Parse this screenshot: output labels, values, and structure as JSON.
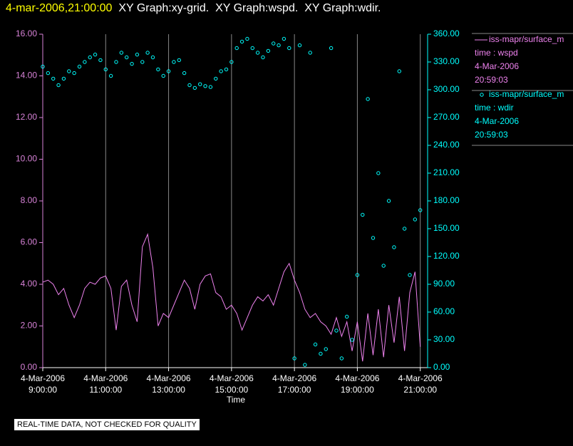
{
  "chart_data": {
    "type": "line",
    "title_time": "4-mar-2006,21:00:00",
    "title": "XY Graph:xy-grid.  XY Graph:wspd.  XY Graph:wdir.",
    "x_label": "Time",
    "note": "REAL-TIME DATA, NOT CHECKED FOR QUALITY",
    "grid": true,
    "xlim": [
      "09:00",
      "21:14"
    ],
    "xticks": [
      {
        "value": "09:00",
        "label": "4-Mar-2006\n9:00:00"
      },
      {
        "value": "11:00",
        "label": "4-Mar-2006\n11:00:00"
      },
      {
        "value": "13:00",
        "label": "4-Mar-2006\n13:00:00"
      },
      {
        "value": "15:00",
        "label": "4-Mar-2006\n15:00:00"
      },
      {
        "value": "17:00",
        "label": "4-Mar-2006\n17:00:00"
      },
      {
        "value": "19:00",
        "label": "4-Mar-2006\n19:00:00"
      },
      {
        "value": "21:00",
        "label": "4-Mar-2006\n21:00:00"
      }
    ],
    "ylim": [
      0,
      16
    ],
    "yticks": [
      {
        "value": 0,
        "label": "0.00"
      },
      {
        "value": 2,
        "label": "2.00"
      },
      {
        "value": 4,
        "label": "4.00"
      },
      {
        "value": 6,
        "label": "6.00"
      },
      {
        "value": 8,
        "label": "8.00"
      },
      {
        "value": 10,
        "label": "10.00"
      },
      {
        "value": 12,
        "label": "12.00"
      },
      {
        "value": 14,
        "label": "14.00"
      },
      {
        "value": 16,
        "label": "16.00"
      }
    ],
    "y2lim": [
      0,
      360
    ],
    "y2ticks": [
      {
        "value": 0,
        "label": "0.00"
      },
      {
        "value": 30,
        "label": "30.00"
      },
      {
        "value": 60,
        "label": "60.00"
      },
      {
        "value": 90,
        "label": "90.00"
      },
      {
        "value": 120,
        "label": "120.00"
      },
      {
        "value": 150,
        "label": "150.00"
      },
      {
        "value": 180,
        "label": "180.00"
      },
      {
        "value": 210,
        "label": "210.00"
      },
      {
        "value": 240,
        "label": "240.00"
      },
      {
        "value": 270,
        "label": "270.00"
      },
      {
        "value": 300,
        "label": "300.00"
      },
      {
        "value": 330,
        "label": "330.00"
      },
      {
        "value": 360,
        "label": "360.00"
      }
    ],
    "y_axis_color": "#d782d7",
    "y2_axis_color": "#00ffff",
    "x": [
      "09:00",
      "09:10",
      "09:20",
      "09:30",
      "09:40",
      "09:50",
      "10:00",
      "10:10",
      "10:20",
      "10:30",
      "10:40",
      "10:50",
      "11:00",
      "11:10",
      "11:20",
      "11:30",
      "11:40",
      "11:50",
      "12:00",
      "12:10",
      "12:20",
      "12:30",
      "12:40",
      "12:50",
      "13:00",
      "13:10",
      "13:20",
      "13:30",
      "13:40",
      "13:50",
      "14:00",
      "14:10",
      "14:20",
      "14:30",
      "14:40",
      "14:50",
      "15:00",
      "15:10",
      "15:20",
      "15:30",
      "15:40",
      "15:50",
      "16:00",
      "16:10",
      "16:20",
      "16:30",
      "16:40",
      "16:50",
      "17:00",
      "17:10",
      "17:20",
      "17:30",
      "17:40",
      "17:50",
      "18:00",
      "18:10",
      "18:20",
      "18:30",
      "18:40",
      "18:50",
      "19:00",
      "19:10",
      "19:20",
      "19:30",
      "19:40",
      "19:50",
      "20:00",
      "20:10",
      "20:20",
      "20:30",
      "20:40",
      "20:50",
      "21:00"
    ],
    "series": [
      {
        "name": "iss-mapr/surface_m",
        "type": "line",
        "color": "#ee82ee",
        "legend_lines": [
          "time : wspd",
          "4-Mar-2006",
          "20:59:03"
        ],
        "values": [
          4.1,
          4.2,
          4.0,
          3.5,
          3.8,
          3.0,
          2.4,
          3.0,
          3.8,
          4.1,
          4.0,
          4.3,
          4.4,
          3.8,
          1.8,
          3.9,
          4.2,
          3.0,
          2.2,
          5.8,
          6.4,
          4.8,
          2.0,
          2.6,
          2.4,
          3.0,
          3.6,
          4.2,
          3.8,
          2.8,
          4.0,
          4.4,
          4.5,
          3.6,
          3.4,
          2.8,
          3.0,
          2.6,
          1.8,
          2.4,
          3.0,
          3.4,
          3.2,
          3.5,
          3.0,
          3.8,
          4.6,
          5.0,
          4.2,
          3.6,
          2.8,
          2.4,
          2.6,
          2.2,
          2.0,
          1.6,
          2.4,
          1.5,
          2.2,
          0.8,
          2.2,
          0.3,
          2.6,
          0.6,
          2.8,
          0.5,
          3.0,
          1.2,
          3.4,
          0.8,
          3.6,
          4.6,
          1.0
        ]
      },
      {
        "name": "iss-mapr/surface_m",
        "type": "scatter",
        "axis": "y2",
        "color": "#00ffff",
        "legend_lines": [
          "time : wdir",
          "4-Mar-2006",
          "20:59:03"
        ],
        "values": [
          325,
          318,
          312,
          305,
          312,
          320,
          318,
          325,
          330,
          335,
          338,
          332,
          322,
          315,
          330,
          340,
          335,
          328,
          338,
          330,
          340,
          335,
          322,
          315,
          320,
          330,
          332,
          318,
          305,
          302,
          306,
          304,
          303,
          312,
          320,
          322,
          330,
          345,
          352,
          355,
          345,
          340,
          335,
          342,
          350,
          348,
          355,
          345,
          10,
          348,
          3,
          340,
          25,
          15,
          20,
          345,
          40,
          10,
          55,
          30,
          100,
          165,
          290,
          140,
          210,
          110,
          180,
          130,
          320,
          150,
          100,
          160,
          170
        ]
      }
    ]
  }
}
